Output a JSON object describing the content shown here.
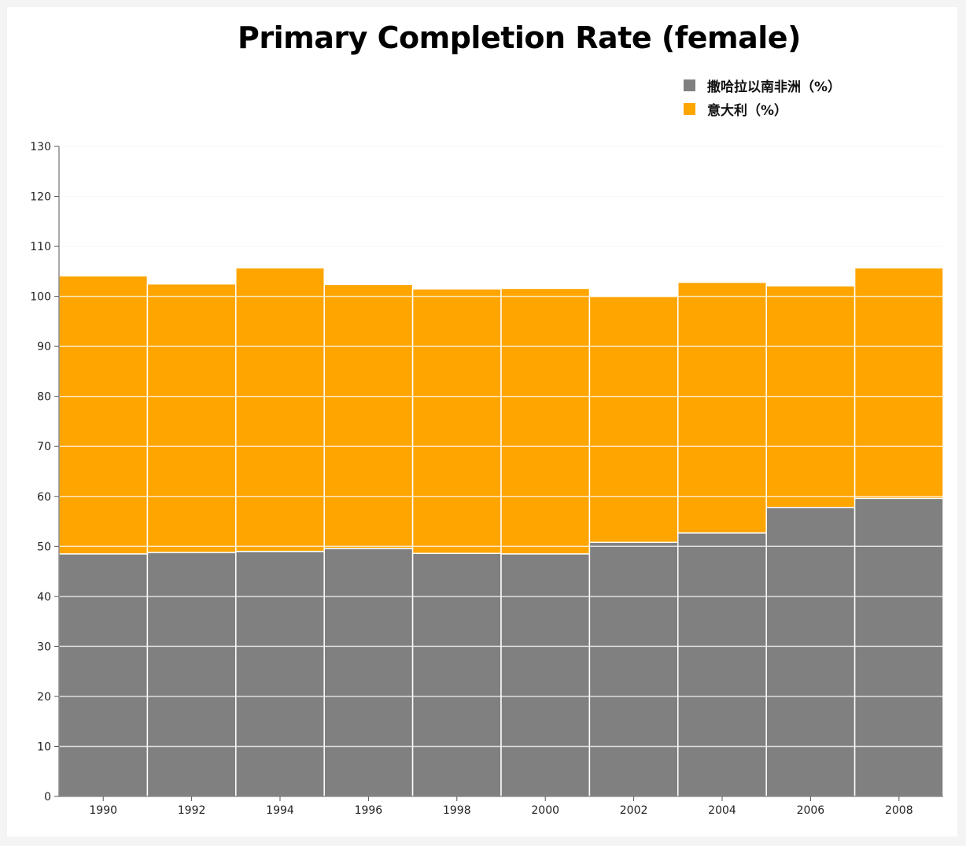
{
  "chart_data": {
    "type": "bar",
    "stacked": true,
    "title": "Primary Completion Rate (female)",
    "xlabel": "",
    "ylabel": "",
    "ylim": [
      0,
      130
    ],
    "yticks": [
      0,
      10,
      20,
      30,
      40,
      50,
      60,
      70,
      80,
      90,
      100,
      110,
      120,
      130
    ],
    "grid": true,
    "legend_position": "top-right",
    "categories": [
      "1990",
      "1992",
      "1994",
      "1996",
      "1998",
      "2000",
      "2002",
      "2004",
      "2006",
      "2008"
    ],
    "series": [
      {
        "name": "撒哈拉以南非洲（%）",
        "color": "#808080",
        "values": [
          48.5,
          48.8,
          49.0,
          49.6,
          48.6,
          48.5,
          50.8,
          52.7,
          57.8,
          59.6
        ]
      },
      {
        "name": "意大利（%）",
        "color": "#ffa500",
        "values": [
          55.6,
          53.7,
          56.7,
          52.8,
          52.9,
          53.1,
          49.2,
          50.1,
          44.3,
          46.1
        ]
      }
    ]
  }
}
